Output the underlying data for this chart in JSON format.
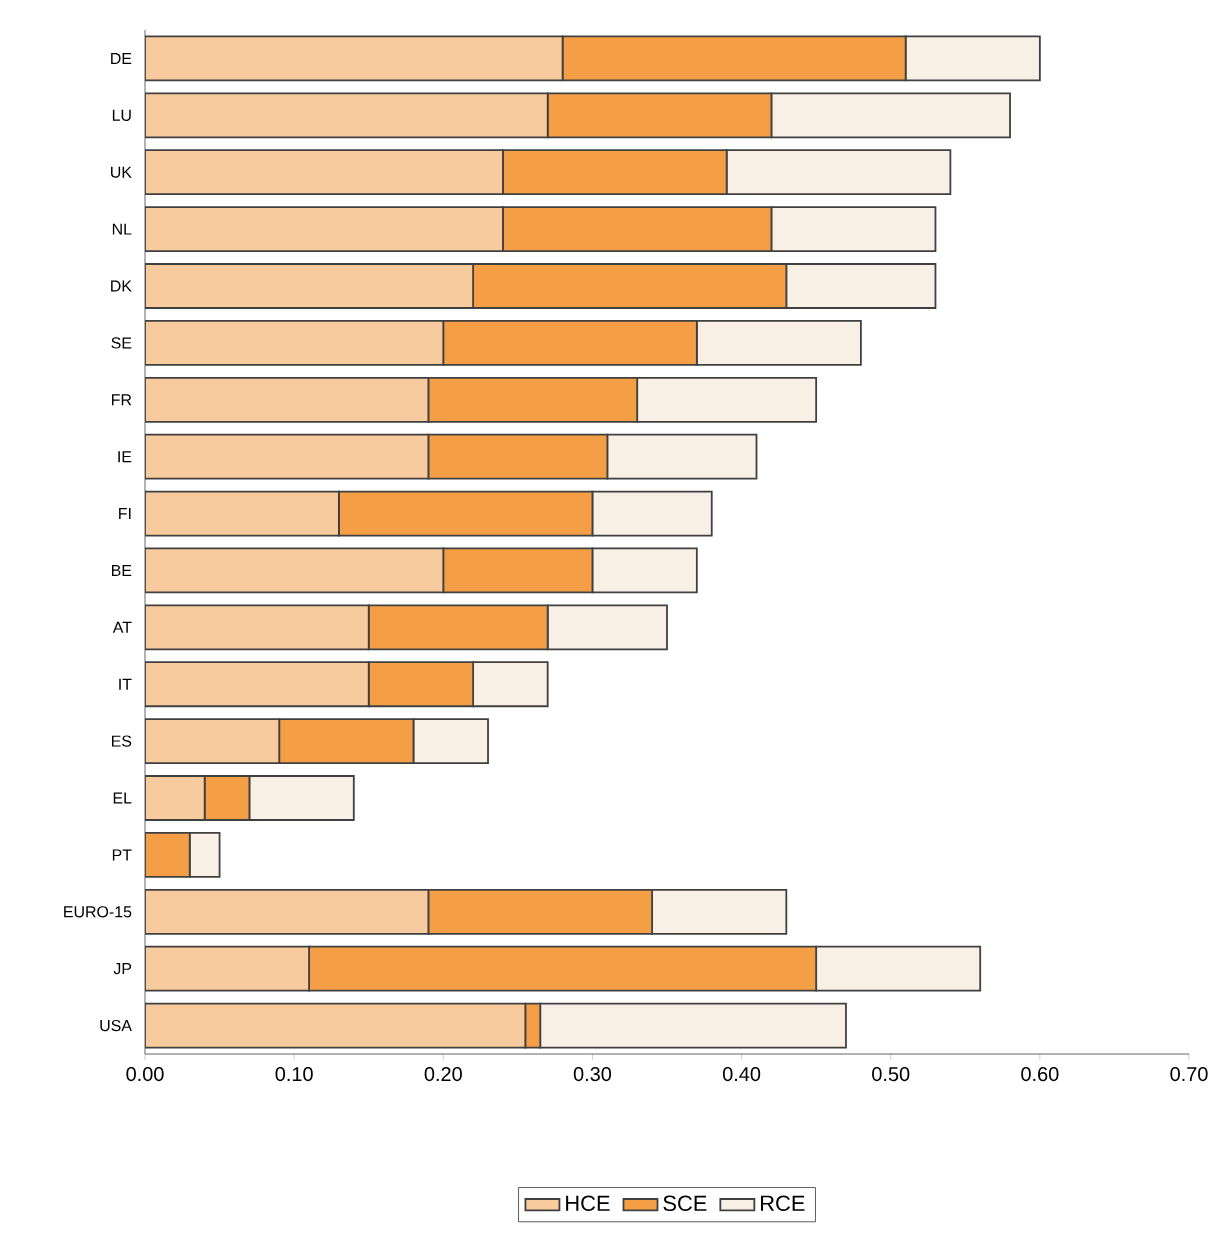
{
  "chart_data": {
    "type": "bar",
    "orientation": "horizontal",
    "stacked": true,
    "categories": [
      "DE",
      "LU",
      "UK",
      "NL",
      "DK",
      "SE",
      "FR",
      "IE",
      "FI",
      "BE",
      "AT",
      "IT",
      "ES",
      "EL",
      "PT",
      "EURO-15",
      "JP",
      "USA"
    ],
    "series": [
      {
        "name": "HCE",
        "color": "#f7cb9d",
        "values": [
          0.28,
          0.27,
          0.24,
          0.24,
          0.22,
          0.2,
          0.19,
          0.19,
          0.13,
          0.2,
          0.15,
          0.15,
          0.09,
          0.04,
          0,
          0.19,
          0.11,
          0.255
        ]
      },
      {
        "name": "SCE",
        "color": "#f49e45",
        "values": [
          0.23,
          0.15,
          0.15,
          0.18,
          0.21,
          0.17,
          0.14,
          0.12,
          0.17,
          0.1,
          0.12,
          0.07,
          0.09,
          0.03,
          0.03,
          0.15,
          0.34,
          0.01
        ]
      },
      {
        "name": "RCE",
        "color": "#f8efe5",
        "values": [
          0.09,
          0.16,
          0.15,
          0.11,
          0.1,
          0.11,
          0.12,
          0.1,
          0.08,
          0.07,
          0.08,
          0.05,
          0.05,
          0.07,
          0.02,
          0.09,
          0.11,
          0.205
        ]
      }
    ],
    "xlim": [
      0,
      0.7
    ],
    "xticks": [
      {
        "value": 0,
        "label": "0.00"
      },
      {
        "value": 0.1,
        "label": "0.10"
      },
      {
        "value": 0.2,
        "label": "0.20"
      },
      {
        "value": 0.3,
        "label": "0.30"
      },
      {
        "value": 0.4,
        "label": "0.40"
      },
      {
        "value": 0.5,
        "label": "0.50"
      },
      {
        "value": 0.6,
        "label": "0.60"
      },
      {
        "value": 0.7,
        "label": "0.70"
      }
    ],
    "grid": false,
    "legend": "bottom"
  }
}
